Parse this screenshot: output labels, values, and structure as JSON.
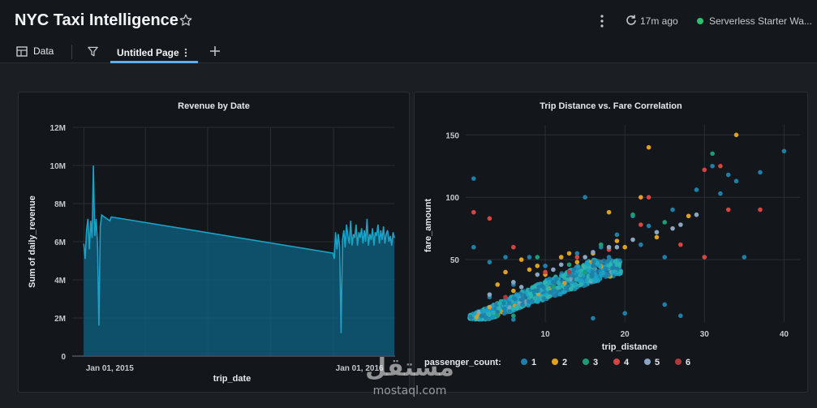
{
  "header": {
    "title": "NYC Taxi Intelligence",
    "refresh_text": "17m ago",
    "warehouse": "Serverless Starter Wa..."
  },
  "toolbar": {
    "data_label": "Data",
    "tab_label": "Untitled Page"
  },
  "colors": {
    "accent": "#5ab0f0",
    "series_primary": "#1aa3c9",
    "status_green": "#2fbf71"
  },
  "icons": [
    "star-icon",
    "kebab-menu-icon",
    "refresh-icon",
    "table-icon",
    "filter-icon",
    "plus-icon"
  ],
  "watermark": {
    "arabic": "مستقل",
    "latin": "mostaql.com"
  },
  "chart_data": [
    {
      "type": "area",
      "title": "Revenue by Date",
      "xlabel": "trip_date",
      "ylabel": "Sum of daily_revenue",
      "x_ticks": [
        "Jan 01, 2015",
        "Jan 01, 2016"
      ],
      "y_ticks": [
        "0",
        "2M",
        "4M",
        "6M",
        "8M",
        "10M",
        "12M"
      ],
      "ylim": [
        0,
        12000000
      ],
      "x": [
        "2015-01-01",
        "2015-01-03",
        "2015-01-05",
        "2015-01-07",
        "2015-01-09",
        "2015-01-11",
        "2015-01-13",
        "2015-01-15",
        "2015-01-17",
        "2015-01-19",
        "2015-01-21",
        "2015-01-23",
        "2015-01-25",
        "2015-01-27",
        "2015-01-29",
        "2015-01-31",
        "2015-02-02",
        "2015-02-04",
        "2015-02-06",
        "2015-02-08",
        "2015-02-10",
        "2015-12-31",
        "2016-01-02",
        "2016-01-04",
        "2016-01-06",
        "2016-01-08",
        "2016-01-10",
        "2016-01-12",
        "2016-01-14",
        "2016-01-16",
        "2016-01-18",
        "2016-01-20",
        "2016-01-22",
        "2016-01-24",
        "2016-01-26",
        "2016-01-28",
        "2016-01-30",
        "2016-02-01",
        "2016-02-03",
        "2016-02-05",
        "2016-02-07",
        "2016-02-09",
        "2016-02-11",
        "2016-02-13",
        "2016-02-15",
        "2016-02-17",
        "2016-02-19",
        "2016-02-21",
        "2016-02-23",
        "2016-02-25",
        "2016-02-27",
        "2016-02-29",
        "2016-03-02",
        "2016-03-04",
        "2016-03-06",
        "2016-03-08",
        "2016-03-10",
        "2016-03-12",
        "2016-03-14",
        "2016-03-16",
        "2016-03-18",
        "2016-03-20",
        "2016-03-22",
        "2016-03-24",
        "2016-03-26",
        "2016-03-28",
        "2016-03-30"
      ],
      "y": [
        5900000,
        5100000,
        6600000,
        7200000,
        5600000,
        7100000,
        6200000,
        10000000,
        6300000,
        7200000,
        5900000,
        1600000,
        6800000,
        7400000,
        7350000,
        7300000,
        7250000,
        7200000,
        7150000,
        7100000,
        7300000,
        5400000,
        5100000,
        6500000,
        5600000,
        6400000,
        5700000,
        1200000,
        6100000,
        6600000,
        5700000,
        6900000,
        6300000,
        5900000,
        7100000,
        5800000,
        6400000,
        6200000,
        6900000,
        5800000,
        6500000,
        6200000,
        6700000,
        5900000,
        6600000,
        6000000,
        7200000,
        5800000,
        6400000,
        6100000,
        6700000,
        5800000,
        6500000,
        6300000,
        6900000,
        5900000,
        6600000,
        6100000,
        6800000,
        5900000,
        6400000,
        6600000,
        6000000,
        6300000,
        5800000,
        6500000,
        6200000
      ]
    },
    {
      "type": "scatter",
      "title": "Trip Distance vs. Fare Correlation",
      "xlabel": "trip_distance",
      "ylabel": "fare_amount",
      "x_ticks": [
        "10",
        "20",
        "30",
        "40"
      ],
      "y_ticks": [
        "50",
        "100",
        "150"
      ],
      "xlim": [
        0,
        42
      ],
      "ylim": [
        0,
        158
      ],
      "legend_title": "passenger_count:",
      "legend_position": "bottom",
      "series": [
        {
          "name": "1",
          "color": "#1f7fa8",
          "points": [
            [
              1,
              115
            ],
            [
              5,
              52
            ],
            [
              8,
              52
            ],
            [
              12,
              52
            ],
            [
              18,
              52
            ],
            [
              25,
              52
            ],
            [
              30,
              52
            ],
            [
              35,
              52
            ],
            [
              40,
              137
            ],
            [
              37,
              120
            ],
            [
              34,
              113
            ],
            [
              29,
              106
            ],
            [
              26,
              90
            ],
            [
              23,
              77
            ],
            [
              22,
              62
            ],
            [
              15,
              100
            ],
            [
              21,
              85
            ],
            [
              19,
              70
            ],
            [
              17,
              60
            ],
            [
              14,
              55
            ],
            [
              3,
              20
            ],
            [
              6,
              30
            ],
            [
              10,
              45
            ],
            [
              2,
              5
            ],
            [
              4,
              8
            ],
            [
              7,
              18
            ],
            [
              9,
              25
            ],
            [
              11,
              32
            ],
            [
              13,
              38
            ],
            [
              16,
              45
            ],
            [
              3,
              48
            ],
            [
              1,
              60
            ],
            [
              6,
              2
            ],
            [
              16,
              3
            ],
            [
              20,
              7
            ],
            [
              25,
              14
            ],
            [
              27,
              5
            ],
            [
              33,
              118
            ],
            [
              31,
              125
            ],
            [
              32,
              103
            ]
          ]
        },
        {
          "name": "2",
          "color": "#e0a020",
          "points": [
            [
              4,
              30
            ],
            [
              8,
              42
            ],
            [
              12,
              52
            ],
            [
              16,
              55
            ],
            [
              20,
              60
            ],
            [
              23,
              140
            ],
            [
              34,
              150
            ],
            [
              28,
              85
            ],
            [
              24,
              68
            ],
            [
              19,
              65
            ],
            [
              14,
              48
            ],
            [
              10,
              38
            ],
            [
              6,
              25
            ],
            [
              3,
              12
            ],
            [
              22,
              100
            ],
            [
              18,
              88
            ],
            [
              13,
              55
            ],
            [
              9,
              45
            ],
            [
              7,
              50
            ],
            [
              5,
              40
            ]
          ]
        },
        {
          "name": "3",
          "color": "#1a9e77",
          "points": [
            [
              4,
              5
            ],
            [
              6,
              5
            ],
            [
              11,
              28
            ],
            [
              15,
              40
            ],
            [
              21,
              86
            ],
            [
              31,
              135
            ],
            [
              9,
              52
            ],
            [
              17,
              62
            ],
            [
              13,
              46
            ],
            [
              25,
              80
            ]
          ]
        },
        {
          "name": "4",
          "color": "#d64541",
          "points": [
            [
              1,
              88
            ],
            [
              3,
              83
            ],
            [
              22,
              78
            ],
            [
              27,
              62
            ],
            [
              30,
              122
            ],
            [
              32,
              125
            ],
            [
              33,
              90
            ],
            [
              30,
              52
            ],
            [
              37,
              90
            ],
            [
              10,
              40
            ],
            [
              18,
              58
            ],
            [
              14,
              52
            ],
            [
              6,
              60
            ],
            [
              23,
              100
            ]
          ]
        },
        {
          "name": "5",
          "color": "#8aa6c1",
          "points": [
            [
              3,
              22
            ],
            [
              6,
              32
            ],
            [
              9,
              38
            ],
            [
              12,
              46
            ],
            [
              15,
              52
            ],
            [
              18,
              60
            ],
            [
              21,
              66
            ],
            [
              24,
              72
            ],
            [
              27,
              78
            ],
            [
              29,
              86
            ],
            [
              7,
              28
            ],
            [
              11,
              42
            ],
            [
              16,
              56
            ],
            [
              19,
              60
            ],
            [
              26,
              75
            ]
          ]
        },
        {
          "name": "6",
          "color": "#b03a3a",
          "points": [
            [
              5,
              20
            ],
            [
              13,
              40
            ]
          ]
        }
      ]
    }
  ]
}
